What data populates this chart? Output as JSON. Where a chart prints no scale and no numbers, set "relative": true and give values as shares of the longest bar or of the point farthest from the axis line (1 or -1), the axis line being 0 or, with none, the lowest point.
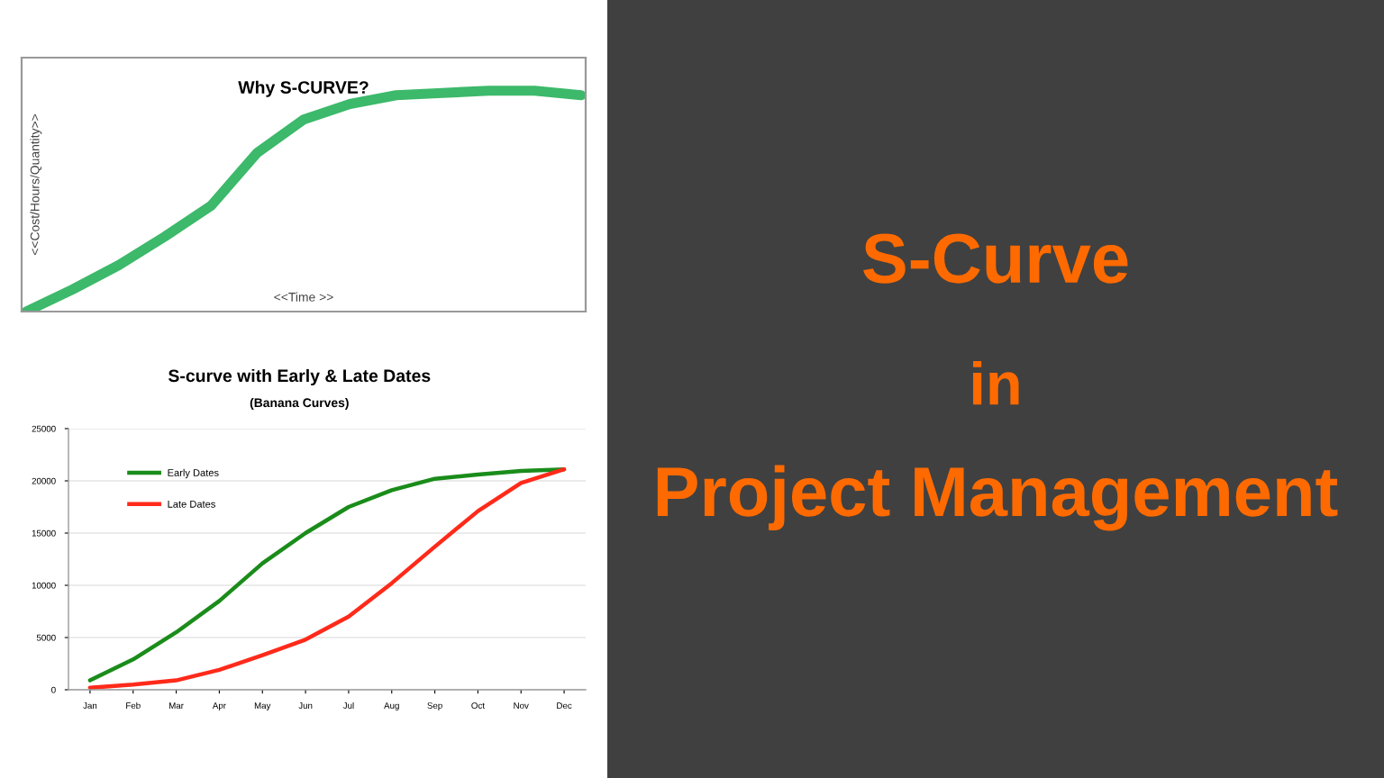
{
  "chart_data": [
    {
      "type": "line",
      "title": "Why S-CURVE?",
      "xlabel": "<<Time >>",
      "ylabel": "<<Cost/Hours/Quantity>>",
      "relative": true,
      "categories": [
        null,
        null,
        null,
        null,
        null,
        null,
        null,
        null,
        null,
        null,
        null,
        null,
        null
      ],
      "series": [
        {
          "color": "#3cb96a",
          "values": [
            0,
            0.1,
            0.21,
            0.34,
            0.48,
            0.72,
            0.87,
            0.94,
            0.98,
            0.99,
            1,
            1,
            0.98
          ]
        }
      ],
      "grid": false,
      "legend": false
    },
    {
      "type": "line",
      "title": "S-curve with Early & Late Dates",
      "subtitle": "(Banana Curves)",
      "categories": [
        "Jan",
        "Feb",
        "Mar",
        "Apr",
        "May",
        "Jun",
        "Jul",
        "Aug",
        "Sep",
        "Oct",
        "Nov",
        "Dec"
      ],
      "series": [
        {
          "name": "Early Dates",
          "color": "#1a8c1a",
          "values": [
            900,
            2900,
            5500,
            8500,
            12100,
            15000,
            17500,
            19100,
            20200,
            20600,
            20950,
            21100
          ]
        },
        {
          "name": "Late Dates",
          "color": "#ff2a1a",
          "values": [
            200,
            500,
            900,
            1900,
            3300,
            4800,
            7000,
            10200,
            13700,
            17100,
            19800,
            21100
          ]
        }
      ],
      "ylim": [
        0,
        25000
      ],
      "yticks": [
        0,
        5000,
        10000,
        15000,
        20000,
        25000
      ],
      "grid": "y",
      "legend": "top left"
    },
    {
      "type": "other",
      "annotations": [
        "S-Curve",
        "in",
        "Project Management"
      ]
    }
  ]
}
